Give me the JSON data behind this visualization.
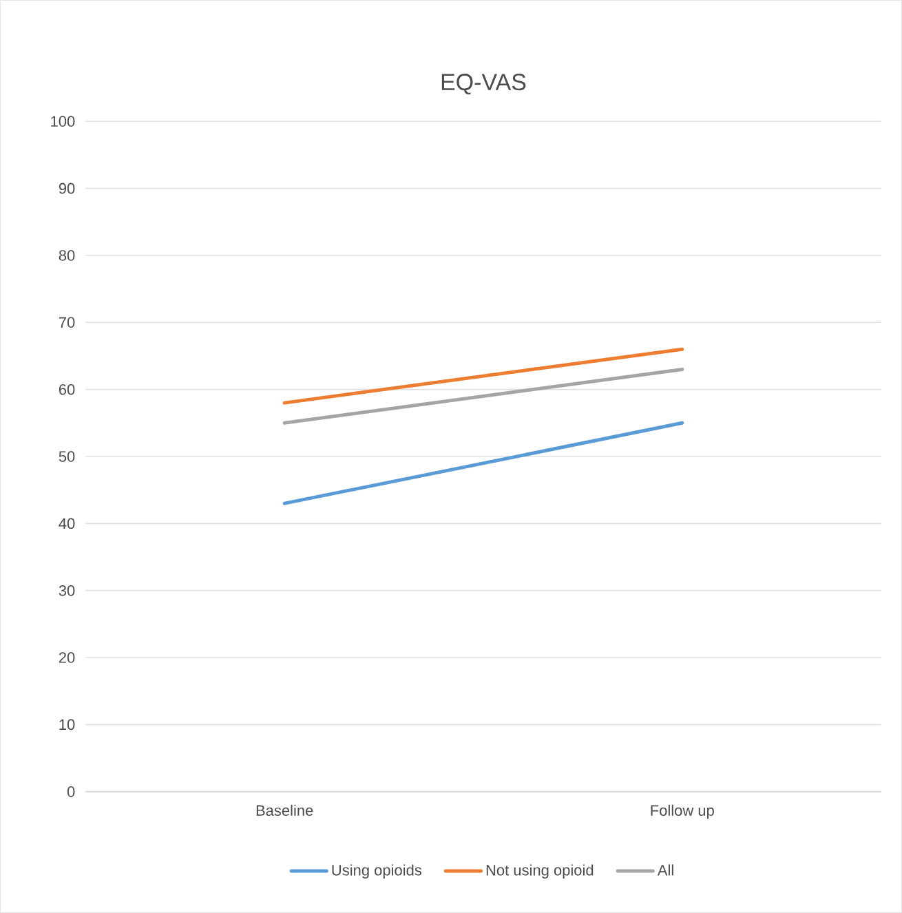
{
  "chart_data": {
    "type": "line",
    "title": "EQ-VAS",
    "categories": [
      "Baseline",
      "Follow up"
    ],
    "series": [
      {
        "name": "Using opioids",
        "color": "#5b9bd5",
        "values": [
          43,
          55
        ]
      },
      {
        "name": "Not using opioid",
        "color": "#ed7d31",
        "values": [
          58,
          66
        ]
      },
      {
        "name": "All",
        "color": "#a5a5a5",
        "values": [
          55,
          63
        ]
      }
    ],
    "ylim": [
      0,
      100
    ],
    "yticks": [
      0,
      10,
      20,
      30,
      40,
      50,
      60,
      70,
      80,
      90,
      100
    ],
    "grid": "y",
    "legend": "bottom",
    "marker": "none",
    "line_style": "solid"
  }
}
